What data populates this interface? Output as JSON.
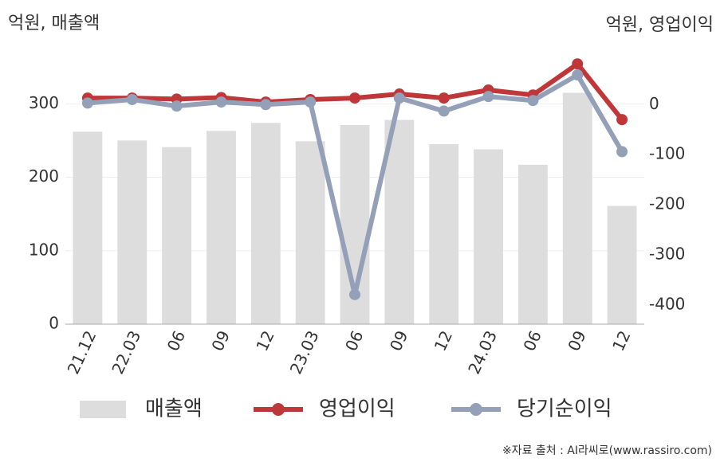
{
  "chart_data": {
    "type": "bar",
    "y_label": "억원, 매출액",
    "y2_label": "억원, 영업이익",
    "source": "※자료 출처 : AI라씨로(www.rassiro.com)",
    "categories": [
      "21.12",
      "22.03",
      "06",
      "09",
      "12",
      "23.03",
      "06",
      "09",
      "12",
      "24.03",
      "06",
      "09",
      "12"
    ],
    "series": [
      {
        "name": "매출액",
        "type": "bar",
        "color": "#dddddd",
        "values": [
          262,
          250,
          241,
          263,
          274,
          249,
          271,
          278,
          245,
          238,
          217,
          315,
          161
        ]
      },
      {
        "name": "영업이익",
        "type": "line",
        "axis": "y2",
        "color": "#c0373a",
        "values": [
          13,
          13,
          11,
          14,
          5,
          10,
          13,
          21,
          13,
          29,
          19,
          81,
          -30
        ]
      },
      {
        "name": "당기순이익",
        "type": "line",
        "axis": "y2",
        "color": "#94a0b8",
        "values": [
          3,
          10,
          -3,
          5,
          0,
          5,
          -379,
          13,
          -13,
          16,
          8,
          59,
          -94
        ]
      }
    ],
    "ylim": [
      0,
      374
    ],
    "yticks": [
      0,
      100,
      200,
      300
    ],
    "y2lim": [
      -438,
      110
    ],
    "y2ticks": [
      0,
      -100,
      -200,
      -300,
      -400
    ],
    "grid": true
  }
}
